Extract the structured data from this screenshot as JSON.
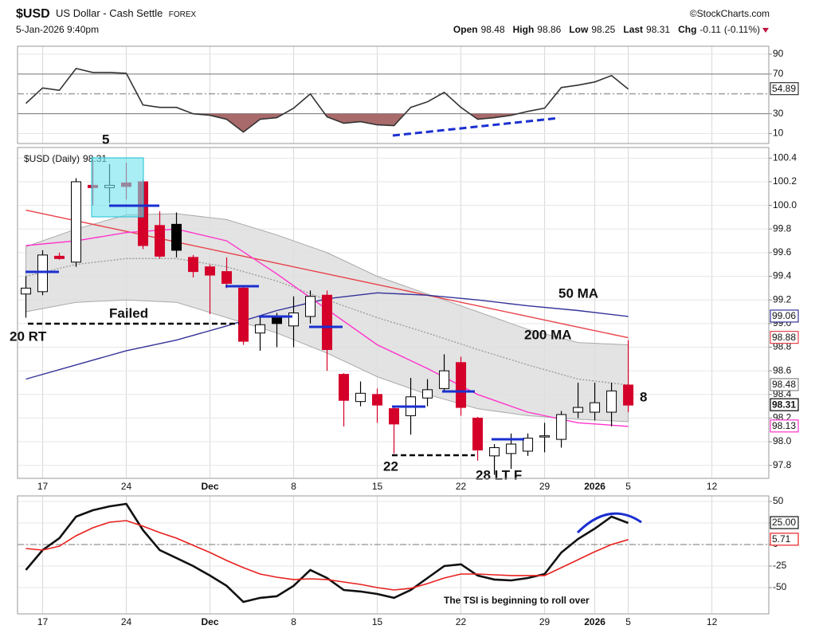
{
  "header": {
    "symbol": "$USD",
    "name": "US Dollar - Cash Settle",
    "exchange": "FOREX",
    "source": "©StockCharts.com",
    "datetime": "5-Jan-2026 9:40pm",
    "quote": [
      {
        "label": "Open",
        "value": 98.48
      },
      {
        "label": "High",
        "value": 98.86
      },
      {
        "label": "Low",
        "value": 98.25
      },
      {
        "label": "Last",
        "value": 98.31
      },
      {
        "label": "Chg",
        "value": -0.11,
        "percent_label": "(-0.11%)"
      }
    ]
  },
  "chart_data": [
    {
      "type": "line",
      "x": [
        0,
        1,
        2,
        3,
        4,
        5,
        6,
        7,
        8,
        9,
        10,
        11,
        12,
        13,
        14,
        15,
        16,
        17,
        18,
        19,
        20,
        21,
        22,
        23,
        24,
        25,
        26,
        27,
        28,
        29,
        30,
        31,
        32,
        33,
        34,
        35,
        36
      ],
      "xlim": [
        -0.5,
        44.4
      ],
      "ylim": [
        0,
        98
      ],
      "yticks": [
        90,
        70,
        30,
        10
      ],
      "reference_lines": [
        70,
        30
      ],
      "midline": 50,
      "fill_below": 30,
      "fill_color": "#a86a6a",
      "series": [
        {
          "color": "#333333",
          "values": [
            40.4,
            56,
            53.6,
            75.6,
            71.6,
            71.6,
            70.8,
            38.8,
            36.4,
            36.4,
            30,
            28.4,
            24.4,
            11.6,
            24.4,
            26,
            35.6,
            50,
            26.8,
            20.4,
            22,
            18.8,
            18,
            36.4,
            42,
            51.6,
            36.4,
            24.4,
            26,
            28.4,
            32.4,
            35.6,
            56.4,
            58.8,
            62,
            68.4,
            54.89
          ]
        }
      ]
    },
    {
      "type": "candlestick",
      "legend": "$USD (Daily)",
      "x": [
        0,
        1,
        2,
        3,
        4,
        5,
        6,
        7,
        8,
        9,
        10,
        11,
        12,
        13,
        14,
        15,
        16,
        17,
        18,
        19,
        20,
        21,
        22,
        23,
        24,
        25,
        26,
        27,
        28,
        29,
        30,
        31,
        32,
        33,
        34,
        35,
        36
      ],
      "open": [
        99.25,
        99.27,
        99.57,
        99.52,
        100.17,
        100.15,
        100.19,
        100.2,
        99.83,
        99.84,
        99.56,
        99.48,
        99.44,
        99.3,
        98.92,
        99.05,
        98.98,
        99.06,
        99.24,
        98.57,
        98.34,
        98.4,
        98.28,
        98.22,
        98.37,
        98.45,
        98.67,
        98.2,
        97.88,
        97.9,
        97.92,
        98.04,
        98.02,
        98.25,
        98.25,
        98.25,
        98.48
      ],
      "high": [
        99.4,
        99.62,
        99.6,
        100.23,
        100.38,
        100.35,
        100.36,
        100.22,
        99.95,
        99.94,
        99.58,
        99.5,
        99.56,
        99.32,
        99.05,
        99.09,
        99.23,
        99.28,
        99.28,
        98.58,
        98.51,
        98.45,
        98.3,
        98.54,
        98.53,
        98.74,
        98.72,
        98.21,
        97.98,
        98.07,
        98.07,
        98.16,
        98.26,
        98.5,
        98.5,
        98.5,
        98.86
      ],
      "low": [
        99.05,
        99.24,
        99.54,
        99.48,
        100.0,
        100.02,
        100.05,
        99.63,
        99.55,
        99.56,
        99.39,
        99.08,
        99.3,
        98.82,
        98.77,
        98.8,
        98.8,
        99.0,
        98.6,
        98.13,
        98.3,
        98.16,
        97.9,
        98.06,
        98.3,
        98.42,
        98.22,
        97.84,
        97.72,
        97.77,
        97.88,
        97.91,
        97.95,
        98.2,
        98.18,
        98.13,
        98.25
      ],
      "close": [
        99.3,
        99.58,
        99.55,
        100.2,
        100.15,
        100.17,
        100.16,
        99.66,
        99.57,
        99.62,
        99.44,
        99.41,
        99.34,
        98.85,
        98.99,
        99.0,
        99.09,
        99.23,
        98.78,
        98.35,
        98.41,
        98.31,
        98.15,
        98.38,
        98.44,
        98.6,
        98.29,
        97.93,
        97.95,
        97.98,
        98.03,
        98.05,
        98.23,
        98.29,
        98.33,
        98.43,
        98.31
      ],
      "up_color": "#000000",
      "down_color": "#d4002a",
      "xlim": [
        -0.5,
        44.4
      ],
      "ylim": [
        97.69,
        100.49
      ],
      "xticks": [
        {
          "value": 1,
          "label": "17"
        },
        {
          "value": 6,
          "label": "24"
        },
        {
          "value": 11,
          "label": "Dec"
        },
        {
          "value": 16,
          "label": "8"
        },
        {
          "value": 21,
          "label": "15"
        },
        {
          "value": 26,
          "label": "22"
        },
        {
          "value": 31,
          "label": "29"
        },
        {
          "value": 34,
          "label": "2026"
        },
        {
          "value": 36,
          "label": "5"
        },
        {
          "value": 41,
          "label": "12"
        }
      ],
      "yticks": [
        100.4,
        100.2,
        {
          "value": 100,
          "label": "100.0"
        },
        99.8,
        99.6,
        99.4,
        99.2,
        {
          "value": 99,
          "label": "99.0"
        },
        98.8,
        98.6,
        98.4,
        98.2,
        {
          "value": 98,
          "label": "98.0"
        },
        97.8
      ],
      "overlay_x": [
        0,
        3,
        6,
        9,
        12,
        15,
        18,
        21,
        24,
        27,
        30,
        33,
        36
      ],
      "band": {
        "color": "#dedede",
        "upper": [
          99.65,
          99.8,
          99.92,
          99.93,
          99.88,
          99.75,
          99.6,
          99.4,
          99.25,
          99.1,
          98.95,
          98.84,
          98.82
        ],
        "middle": [
          99.4,
          99.5,
          99.55,
          99.55,
          99.48,
          99.36,
          99.2,
          99.05,
          98.92,
          98.78,
          98.65,
          98.53,
          98.48
        ],
        "lower": [
          99.1,
          99.18,
          99.2,
          99.18,
          99.05,
          98.92,
          98.75,
          98.55,
          98.4,
          98.28,
          98.22,
          98.19,
          98.17
        ]
      },
      "overlays": [
        {
          "color": "#e8424a",
          "values": [
            99.96,
            99.87,
            99.78,
            99.69,
            99.6,
            99.51,
            99.42,
            99.33,
            99.24,
            99.15,
            99.06,
            98.97,
            98.88
          ]
        },
        {
          "color": "#333399",
          "values": [
            98.53,
            98.65,
            98.77,
            98.86,
            98.98,
            99.11,
            99.21,
            99.26,
            99.24,
            99.2,
            99.15,
            99.11,
            99.06
          ]
        },
        {
          "color": "#ff33cc",
          "values": [
            99.66,
            99.7,
            99.77,
            99.8,
            99.7,
            99.42,
            99.12,
            98.82,
            98.62,
            98.4,
            98.25,
            98.16,
            98.13
          ]
        }
      ],
      "annotations": [
        {
          "text": "5",
          "color": "#1a2fd0"
        },
        {
          "text": "Failed",
          "color": "#e8202a"
        },
        {
          "text": "20 RT",
          "color": "#1a2fd0"
        },
        {
          "text": "50 MA",
          "color": "#111111"
        },
        {
          "text": "200 MA",
          "color": "#111111"
        },
        {
          "text": "8",
          "color": "#1a2fd0"
        },
        {
          "text": "22",
          "color": "#1a2fd0"
        },
        {
          "text": "28 LT F",
          "color": "#1a2fd0"
        }
      ]
    },
    {
      "type": "line",
      "x": [
        0,
        1,
        2,
        3,
        4,
        5,
        6,
        7,
        8,
        9,
        10,
        11,
        12,
        13,
        14,
        15,
        16,
        17,
        18,
        19,
        20,
        21,
        22,
        23,
        24,
        25,
        26,
        27,
        28,
        29,
        30,
        31,
        32,
        33,
        34,
        35,
        36
      ],
      "xlim": [
        -0.5,
        44.4
      ],
      "ylim": [
        -80.6,
        56.5
      ],
      "yticks": [
        50,
        25,
        0,
        -25,
        -50
      ],
      "midline": 0,
      "xticks": [
        {
          "value": 1,
          "label": "17"
        },
        {
          "value": 6,
          "label": "24"
        },
        {
          "value": 11,
          "label": "Dec"
        },
        {
          "value": 16,
          "label": "8"
        },
        {
          "value": 21,
          "label": "15"
        },
        {
          "value": 26,
          "label": "22"
        },
        {
          "value": 31,
          "label": "29"
        },
        {
          "value": 34,
          "label": "2026"
        },
        {
          "value": 36,
          "label": "5"
        },
        {
          "value": 41,
          "label": "12"
        }
      ],
      "annotation": "The TSI is beginning to roll over",
      "annotation_color": "#1a2fd0",
      "series": [
        {
          "color": "#111111",
          "values": [
            -29.6,
            -6.5,
            7.4,
            32.4,
            39.8,
            44.4,
            47.2,
            16.7,
            -6.5,
            -15.7,
            -25,
            -36,
            -48,
            -66.7,
            -62,
            -60,
            -48,
            -29.6,
            -38.9,
            -52.8,
            -54.6,
            -57.4,
            -62,
            -52.8,
            -38.9,
            -25,
            -23,
            -36,
            -40.7,
            -41.7,
            -38.9,
            -34.3,
            -9.3,
            6.5,
            18.5,
            32.4,
            25
          ],
          "last_label": "25.00"
        },
        {
          "color": "#e8201e",
          "values": [
            -4.6,
            -6.5,
            -1.9,
            10.2,
            19.4,
            25.9,
            27.8,
            21.3,
            13.9,
            7.4,
            -0.9,
            -9.3,
            -18.5,
            -26.9,
            -34.3,
            -38,
            -40.7,
            -39.8,
            -40.7,
            -43.5,
            -46.3,
            -50,
            -52.8,
            -50.9,
            -45.4,
            -38.9,
            -34.3,
            -34.3,
            -35.2,
            -36,
            -36,
            -36,
            -26.9,
            -17.6,
            -8.3,
            0,
            5.71
          ]
        }
      ]
    }
  ]
}
